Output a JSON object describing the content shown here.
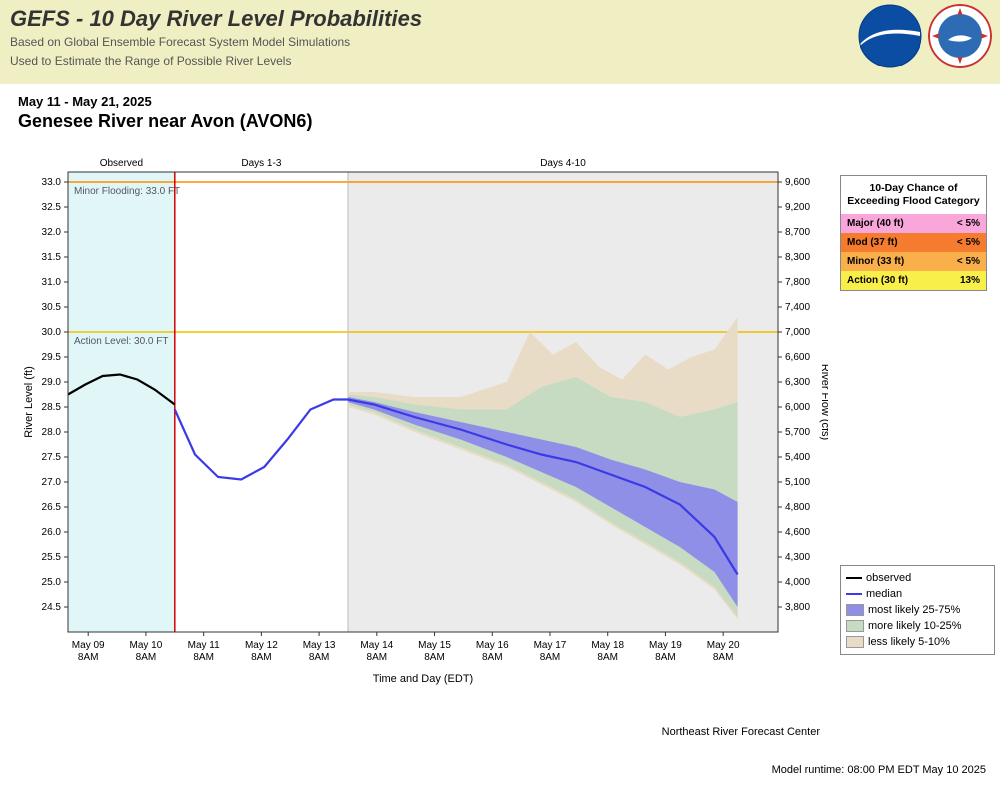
{
  "header": {
    "title": "GEFS - 10 Day River Level Probabilities",
    "sub1": "Based on Global Ensemble Forecast System Model Simulations",
    "sub2": "Used to Estimate the Range of Possible River Levels"
  },
  "title_block": {
    "dates": "May 11 - May 21, 2025",
    "location": "Genesee River near Avon (AVON6)"
  },
  "chart": {
    "plot_bg": "#ffffff",
    "observed_bg": "#e1f7f7",
    "days4_10_bg": "#ebebeb",
    "grid_color": "#dddddd",
    "axis_color": "#333333",
    "now_line_color": "#d40000",
    "minor_flood_color": "#ff8c00",
    "action_line_color": "#f0c000",
    "minor_flood_label": "Minor Flooding: 33.0 FT",
    "action_label": "Action Level: 30.0 FT",
    "section_labels": {
      "observed": "Observed",
      "d13": "Days 1-3",
      "d410": "Days 4-10"
    },
    "x_label": "Time and Day (EDT)",
    "y_left_label": "River Level (ft)",
    "y_right_label": "River Flow (cfs)",
    "y_left_min": 24.0,
    "y_left_max": 33.2,
    "y_left_ticks": [
      24.5,
      25.0,
      25.5,
      26.0,
      26.5,
      27.0,
      27.5,
      28.0,
      28.5,
      29.0,
      29.5,
      30.0,
      30.5,
      31.0,
      31.5,
      32.0,
      32.5,
      33.0
    ],
    "y_right_ticks": [
      3800,
      4000,
      4300,
      4600,
      4800,
      5100,
      5400,
      5700,
      6000,
      6300,
      6600,
      7000,
      7400,
      7800,
      8300,
      8700,
      9200,
      9600
    ],
    "x_ticks": [
      "May 09\n8AM",
      "May 10\n8AM",
      "May 11\n8AM",
      "May 12\n8AM",
      "May 13\n8AM",
      "May 14\n8AM",
      "May 15\n8AM",
      "May 16\n8AM",
      "May 17\n8AM",
      "May 18\n8AM",
      "May 19\n8AM",
      "May 20\n8AM"
    ],
    "x_min": 0,
    "x_max": 12.3,
    "x_now": 1.85,
    "x_days13_end": 4.85,
    "observed_color": "#000000",
    "median_color": "#3a3ae6",
    "band25_75_color": "#8f8fe8",
    "band10_25_color": "#c7dbc2",
    "band5_10_color": "#e8dcc6",
    "observed": [
      [
        0,
        28.75
      ],
      [
        0.3,
        28.95
      ],
      [
        0.6,
        29.12
      ],
      [
        0.9,
        29.15
      ],
      [
        1.2,
        29.05
      ],
      [
        1.5,
        28.85
      ],
      [
        1.85,
        28.55
      ]
    ],
    "median": [
      [
        1.85,
        28.45
      ],
      [
        2.2,
        27.55
      ],
      [
        2.6,
        27.1
      ],
      [
        3.0,
        27.05
      ],
      [
        3.4,
        27.3
      ],
      [
        3.8,
        27.85
      ],
      [
        4.2,
        28.45
      ],
      [
        4.6,
        28.65
      ],
      [
        4.85,
        28.65
      ],
      [
        5.3,
        28.55
      ],
      [
        6.0,
        28.3
      ],
      [
        6.8,
        28.05
      ],
      [
        7.6,
        27.75
      ],
      [
        8.2,
        27.55
      ],
      [
        8.8,
        27.4
      ],
      [
        9.4,
        27.15
      ],
      [
        10.0,
        26.9
      ],
      [
        10.6,
        26.55
      ],
      [
        11.2,
        25.9
      ],
      [
        11.6,
        25.15
      ]
    ],
    "p25": [
      [
        4.85,
        28.6
      ],
      [
        5.3,
        28.45
      ],
      [
        6.0,
        28.15
      ],
      [
        6.8,
        27.85
      ],
      [
        7.6,
        27.5
      ],
      [
        8.2,
        27.2
      ],
      [
        8.8,
        26.9
      ],
      [
        9.4,
        26.5
      ],
      [
        10.0,
        26.1
      ],
      [
        10.6,
        25.7
      ],
      [
        11.2,
        25.2
      ],
      [
        11.6,
        24.5
      ]
    ],
    "p75": [
      [
        4.85,
        28.7
      ],
      [
        5.3,
        28.6
      ],
      [
        6.0,
        28.4
      ],
      [
        6.8,
        28.2
      ],
      [
        7.6,
        28.0
      ],
      [
        8.2,
        27.85
      ],
      [
        8.8,
        27.7
      ],
      [
        9.4,
        27.45
      ],
      [
        10.0,
        27.25
      ],
      [
        10.6,
        27.0
      ],
      [
        11.2,
        26.85
      ],
      [
        11.6,
        26.6
      ]
    ],
    "p10": [
      [
        4.85,
        28.55
      ],
      [
        5.3,
        28.4
      ],
      [
        6.0,
        28.05
      ],
      [
        6.8,
        27.7
      ],
      [
        7.6,
        27.35
      ],
      [
        8.2,
        27.0
      ],
      [
        8.8,
        26.65
      ],
      [
        9.4,
        26.2
      ],
      [
        10.0,
        25.8
      ],
      [
        10.6,
        25.4
      ],
      [
        11.2,
        24.9
      ],
      [
        11.6,
        24.3
      ]
    ],
    "p90": [
      [
        4.85,
        28.75
      ],
      [
        5.3,
        28.7
      ],
      [
        6.0,
        28.55
      ],
      [
        6.8,
        28.45
      ],
      [
        7.6,
        28.45
      ],
      [
        8.2,
        28.9
      ],
      [
        8.8,
        29.1
      ],
      [
        9.4,
        28.7
      ],
      [
        10.0,
        28.6
      ],
      [
        10.6,
        28.3
      ],
      [
        11.2,
        28.45
      ],
      [
        11.6,
        28.6
      ]
    ],
    "p5": [
      [
        4.85,
        28.5
      ],
      [
        5.3,
        28.35
      ],
      [
        6.0,
        28.0
      ],
      [
        6.8,
        27.65
      ],
      [
        7.6,
        27.3
      ],
      [
        8.2,
        26.95
      ],
      [
        8.8,
        26.6
      ],
      [
        9.4,
        26.15
      ],
      [
        10.0,
        25.75
      ],
      [
        10.6,
        25.35
      ],
      [
        11.2,
        24.85
      ],
      [
        11.6,
        24.25
      ]
    ],
    "p95": [
      [
        4.85,
        28.8
      ],
      [
        5.3,
        28.8
      ],
      [
        6.0,
        28.7
      ],
      [
        6.8,
        28.7
      ],
      [
        7.6,
        29.0
      ],
      [
        8.0,
        30.0
      ],
      [
        8.4,
        29.55
      ],
      [
        8.8,
        29.8
      ],
      [
        9.2,
        29.3
      ],
      [
        9.6,
        29.05
      ],
      [
        10.0,
        29.55
      ],
      [
        10.4,
        29.25
      ],
      [
        10.8,
        29.5
      ],
      [
        11.2,
        29.65
      ],
      [
        11.6,
        30.3
      ]
    ]
  },
  "exceed": {
    "title": "10-Day Chance of Exceeding Flood Category",
    "rows": [
      {
        "label": "Major (40 ft)",
        "pct": "< 5%",
        "bg": "#f9a6db"
      },
      {
        "label": "Mod (37 ft)",
        "pct": "< 5%",
        "bg": "#f57c2e"
      },
      {
        "label": "Minor (33 ft)",
        "pct": "< 5%",
        "bg": "#f9b04b"
      },
      {
        "label": "Action (30 ft)",
        "pct": "13%",
        "bg": "#f9ef4b"
      }
    ]
  },
  "legend": {
    "rows": [
      {
        "label": "observed",
        "type": "line",
        "color": "#000000"
      },
      {
        "label": "median",
        "type": "line",
        "color": "#3a3ae6"
      },
      {
        "label": "most likely 25-75%",
        "type": "box",
        "color": "#8f8fe8"
      },
      {
        "label": "more likely 10-25%",
        "type": "box",
        "color": "#c7dbc2"
      },
      {
        "label": "less likely 5-10%",
        "type": "box",
        "color": "#e8dcc6"
      }
    ]
  },
  "footer": {
    "credit": "Northeast River Forecast Center",
    "model_run": "Model runtime: 08:00 PM EDT May 10 2025"
  }
}
